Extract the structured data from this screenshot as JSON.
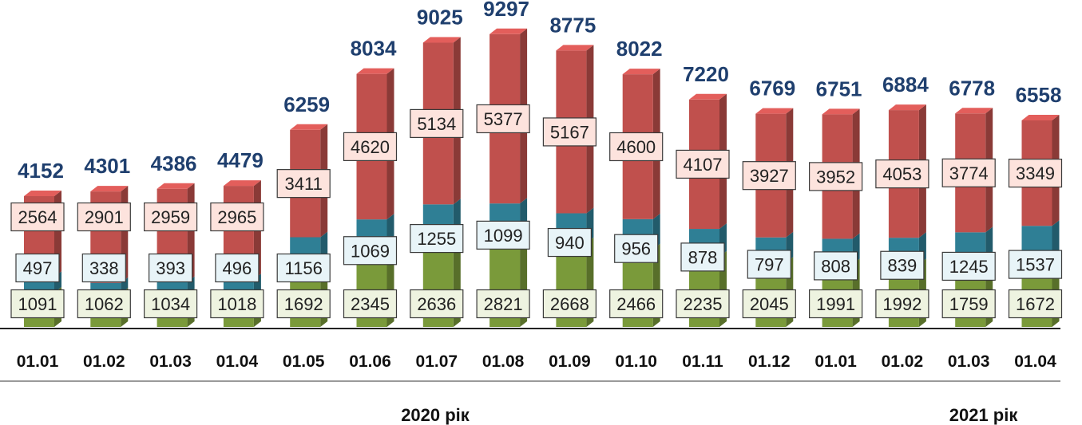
{
  "chart_data": {
    "type": "bar",
    "stacked": true,
    "three_d": true,
    "categories": [
      "01.01",
      "01.02",
      "01.03",
      "01.04",
      "01.05",
      "01.06",
      "01.07",
      "01.08",
      "01.09",
      "01.10",
      "01.11",
      "01.12",
      "01.01",
      "01.02",
      "01.03",
      "01.04"
    ],
    "series": [
      {
        "color": "#7a9a3a",
        "box_fill": "#eef3e0",
        "values": [
          1091,
          1062,
          1034,
          1018,
          1692,
          2345,
          2636,
          2821,
          2668,
          2466,
          2235,
          2045,
          1991,
          1992,
          1759,
          1672
        ]
      },
      {
        "color": "#2f7f95",
        "box_fill": "#e8f4f8",
        "values": [
          497,
          338,
          393,
          496,
          1156,
          1069,
          1255,
          1099,
          940,
          956,
          878,
          797,
          808,
          839,
          1245,
          1537
        ]
      },
      {
        "color": "#c0504d",
        "box_fill": "#fde3dd",
        "values": [
          2564,
          2901,
          2959,
          2965,
          3411,
          4620,
          5134,
          5377,
          5167,
          4600,
          4107,
          3927,
          3952,
          4053,
          3774,
          3349
        ]
      }
    ],
    "totals": [
      4152,
      4301,
      4386,
      4479,
      6259,
      8034,
      9025,
      9297,
      8775,
      8022,
      7220,
      6769,
      6751,
      6884,
      6778,
      6558
    ],
    "year_groups": [
      {
        "label": "2020 рік",
        "start": 0,
        "end": 11
      },
      {
        "label": "2021 рік",
        "start": 12,
        "end": 15
      }
    ],
    "title": "",
    "xlabel": "",
    "ylabel": "",
    "ylim": [
      0,
      10000
    ],
    "grid": false,
    "legend": "none"
  }
}
